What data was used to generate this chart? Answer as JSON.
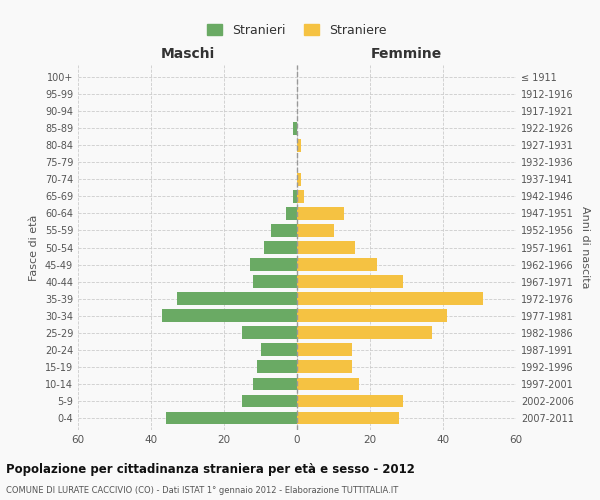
{
  "age_groups": [
    "100+",
    "95-99",
    "90-94",
    "85-89",
    "80-84",
    "75-79",
    "70-74",
    "65-69",
    "60-64",
    "55-59",
    "50-54",
    "45-49",
    "40-44",
    "35-39",
    "30-34",
    "25-29",
    "20-24",
    "15-19",
    "10-14",
    "5-9",
    "0-4"
  ],
  "birth_years": [
    "≤ 1911",
    "1912-1916",
    "1917-1921",
    "1922-1926",
    "1927-1931",
    "1932-1936",
    "1937-1941",
    "1942-1946",
    "1947-1951",
    "1952-1956",
    "1957-1961",
    "1962-1966",
    "1967-1971",
    "1972-1976",
    "1977-1981",
    "1982-1986",
    "1987-1991",
    "1992-1996",
    "1997-2001",
    "2002-2006",
    "2007-2011"
  ],
  "males": [
    0,
    0,
    0,
    1,
    0,
    0,
    0,
    1,
    3,
    7,
    9,
    13,
    12,
    33,
    37,
    15,
    10,
    11,
    12,
    15,
    36
  ],
  "females": [
    0,
    0,
    0,
    0,
    1,
    0,
    1,
    2,
    13,
    10,
    16,
    22,
    29,
    51,
    41,
    37,
    15,
    15,
    17,
    29,
    28
  ],
  "male_color": "#6aaa64",
  "female_color": "#f5c242",
  "male_label": "Stranieri",
  "female_label": "Straniere",
  "title": "Popolazione per cittadinanza straniera per età e sesso - 2012",
  "subtitle": "COMUNE DI LURATE CACCIVIO (CO) - Dati ISTAT 1° gennaio 2012 - Elaborazione TUTTITALIA.IT",
  "xlabel_left": "Maschi",
  "xlabel_right": "Femmine",
  "ylabel_left": "Fasce di età",
  "ylabel_right": "Anni di nascita",
  "xlim": 60,
  "background_color": "#f9f9f9",
  "grid_color": "#cccccc",
  "bar_height": 0.75
}
